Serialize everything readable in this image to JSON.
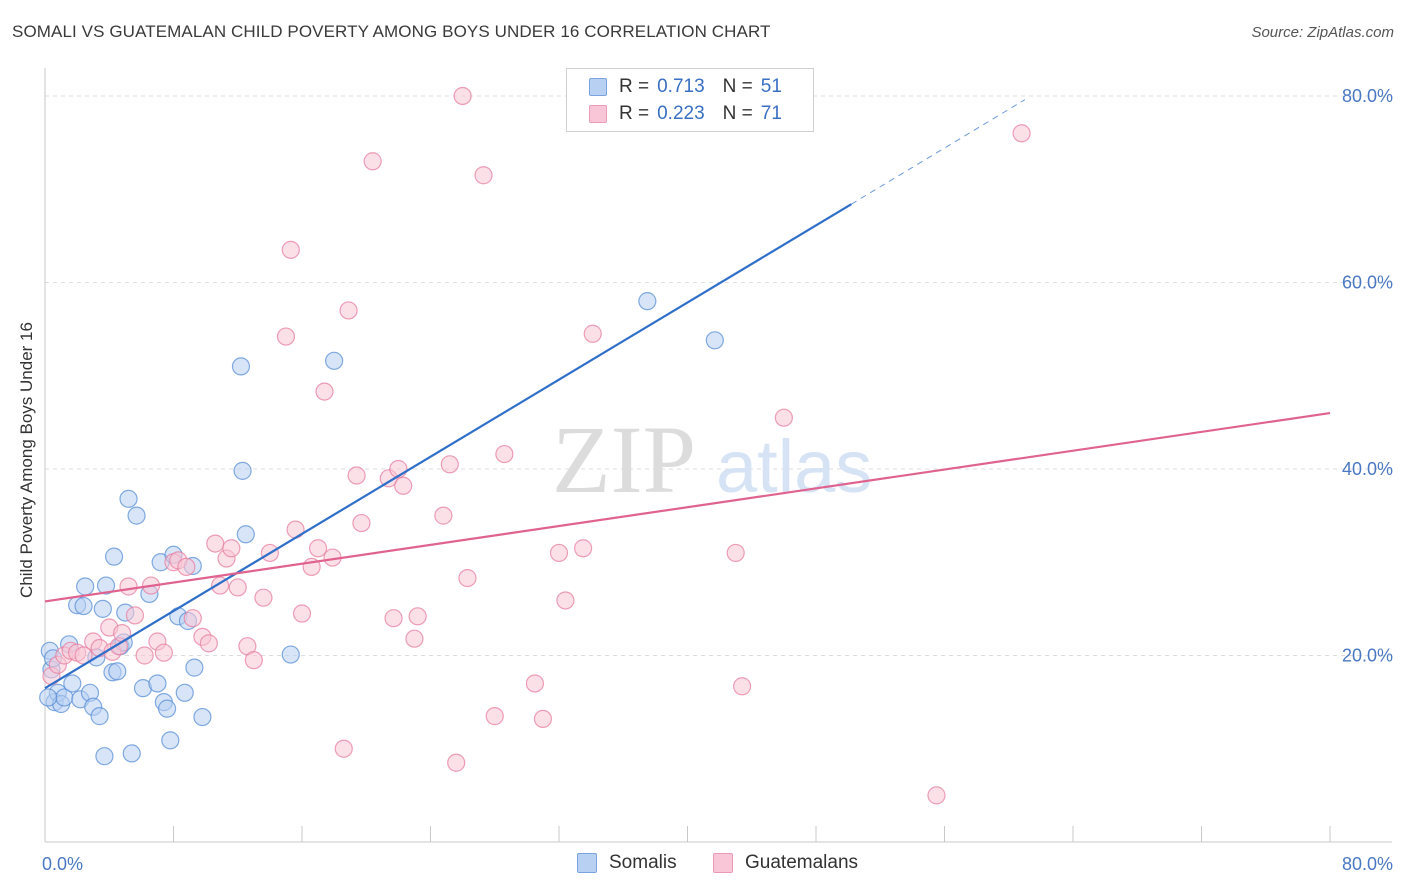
{
  "title": "SOMALI VS GUATEMALAN CHILD POVERTY AMONG BOYS UNDER 16 CORRELATION CHART",
  "source": "Source: ZipAtlas.com",
  "watermark": {
    "zip": "ZIP",
    "atlas": "atlas"
  },
  "legend_top": {
    "rows": [
      {
        "r_label": "R =",
        "r_value": "0.713",
        "n_label": "N =",
        "n_value": "51",
        "fill": "#b8d0f2",
        "stroke": "#7aa3df"
      },
      {
        "r_label": "R =",
        "r_value": "0.223",
        "n_label": "N =",
        "n_value": "71",
        "fill": "#f8c6d6",
        "stroke": "#eb9ab5"
      }
    ]
  },
  "legend_bottom": [
    {
      "label": "Somalis",
      "fill": "#b8d0f2",
      "stroke": "#7aa3df"
    },
    {
      "label": "Guatemalans",
      "fill": "#f8c6d6",
      "stroke": "#eb9ab5"
    }
  ],
  "chart_data": {
    "type": "scatter",
    "title": "SOMALI VS GUATEMALAN CHILD POVERTY AMONG BOYS UNDER 16 CORRELATION CHART",
    "xlabel": "",
    "ylabel": "Child Poverty Among Boys Under 16",
    "xlim": [
      0,
      80
    ],
    "ylim": [
      0,
      83
    ],
    "x_tick_labels": [
      {
        "value": 0,
        "label": "0.0%"
      },
      {
        "value": 80,
        "label": "80.0%"
      }
    ],
    "y_tick_labels": [
      {
        "value": 20,
        "label": "20.0%"
      },
      {
        "value": 40,
        "label": "40.0%"
      },
      {
        "value": 60,
        "label": "60.0%"
      },
      {
        "value": 80,
        "label": "80.0%"
      }
    ],
    "x_minor_ticks": [
      0,
      8,
      16,
      24,
      32,
      40,
      48,
      56,
      64,
      72,
      80
    ],
    "grid_y": [
      20,
      40,
      60,
      80
    ],
    "series": [
      {
        "name": "Somalis",
        "color": "#5a8fd6",
        "fill": "#b8d0f2",
        "r": 0.713,
        "n": 51,
        "trend": {
          "x0": 0,
          "y0": 16.5,
          "x1": 50.2,
          "y1": 68.4,
          "dash_x1": 61.0,
          "dash_y1": 79.6,
          "color": "#2f6fc9"
        },
        "points": [
          [
            0.3,
            20.5
          ],
          [
            0.4,
            18.5
          ],
          [
            0.5,
            19.7
          ],
          [
            0.6,
            15.0
          ],
          [
            0.8,
            16.0
          ],
          [
            1.0,
            14.8
          ],
          [
            1.2,
            15.5
          ],
          [
            1.5,
            21.2
          ],
          [
            1.7,
            17.0
          ],
          [
            2.0,
            25.4
          ],
          [
            2.2,
            15.3
          ],
          [
            2.4,
            25.3
          ],
          [
            2.5,
            27.4
          ],
          [
            2.8,
            16.0
          ],
          [
            3.0,
            14.5
          ],
          [
            3.2,
            19.8
          ],
          [
            3.4,
            13.5
          ],
          [
            3.6,
            25.0
          ],
          [
            3.7,
            9.2
          ],
          [
            3.8,
            27.5
          ],
          [
            4.2,
            18.2
          ],
          [
            4.3,
            30.6
          ],
          [
            4.5,
            18.3
          ],
          [
            4.7,
            21.0
          ],
          [
            4.9,
            21.4
          ],
          [
            5.0,
            24.6
          ],
          [
            5.2,
            36.8
          ],
          [
            5.4,
            9.5
          ],
          [
            5.7,
            35.0
          ],
          [
            6.1,
            16.5
          ],
          [
            6.5,
            26.6
          ],
          [
            7.0,
            17.0
          ],
          [
            7.2,
            30.0
          ],
          [
            7.4,
            15.0
          ],
          [
            7.6,
            14.3
          ],
          [
            7.8,
            10.9
          ],
          [
            8.0,
            30.8
          ],
          [
            8.3,
            24.2
          ],
          [
            8.7,
            16.0
          ],
          [
            8.9,
            23.7
          ],
          [
            9.2,
            29.6
          ],
          [
            9.3,
            18.7
          ],
          [
            9.8,
            13.4
          ],
          [
            12.2,
            51.0
          ],
          [
            12.3,
            39.8
          ],
          [
            12.5,
            33.0
          ],
          [
            15.3,
            20.1
          ],
          [
            18.0,
            51.6
          ],
          [
            37.5,
            58.0
          ],
          [
            41.7,
            53.8
          ],
          [
            0.2,
            15.5
          ]
        ]
      },
      {
        "name": "Guatemalans",
        "color": "#e77fa1",
        "fill": "#f8c6d6",
        "r": 0.223,
        "n": 71,
        "trend": {
          "x0": 0,
          "y0": 25.8,
          "x1": 80,
          "y1": 46.0,
          "color": "#e0628f"
        },
        "points": [
          [
            0.4,
            17.8
          ],
          [
            0.8,
            19.0
          ],
          [
            1.2,
            20.0
          ],
          [
            1.6,
            20.5
          ],
          [
            2.0,
            20.3
          ],
          [
            2.4,
            20.0
          ],
          [
            3.0,
            21.5
          ],
          [
            3.4,
            20.8
          ],
          [
            4.0,
            23.0
          ],
          [
            4.2,
            20.4
          ],
          [
            4.6,
            21.0
          ],
          [
            4.8,
            22.4
          ],
          [
            5.2,
            27.4
          ],
          [
            5.6,
            24.3
          ],
          [
            6.2,
            20.0
          ],
          [
            6.6,
            27.5
          ],
          [
            7.0,
            21.5
          ],
          [
            7.4,
            20.3
          ],
          [
            8.0,
            30.0
          ],
          [
            8.3,
            30.2
          ],
          [
            8.8,
            29.5
          ],
          [
            9.2,
            24.0
          ],
          [
            9.8,
            22.0
          ],
          [
            10.2,
            21.3
          ],
          [
            10.6,
            32.0
          ],
          [
            10.9,
            27.5
          ],
          [
            11.3,
            30.4
          ],
          [
            11.6,
            31.5
          ],
          [
            12.0,
            27.3
          ],
          [
            12.6,
            21.0
          ],
          [
            13.0,
            19.5
          ],
          [
            13.6,
            26.2
          ],
          [
            14.0,
            31.0
          ],
          [
            15.3,
            63.5
          ],
          [
            15.0,
            54.2
          ],
          [
            15.6,
            33.5
          ],
          [
            16.0,
            24.5
          ],
          [
            16.6,
            29.5
          ],
          [
            17.0,
            31.5
          ],
          [
            17.4,
            48.3
          ],
          [
            17.9,
            30.5
          ],
          [
            18.6,
            10.0
          ],
          [
            18.9,
            57.0
          ],
          [
            19.4,
            39.3
          ],
          [
            19.7,
            34.2
          ],
          [
            20.4,
            73.0
          ],
          [
            21.4,
            39.0
          ],
          [
            21.7,
            24.0
          ],
          [
            22.0,
            40.0
          ],
          [
            22.3,
            38.2
          ],
          [
            23.0,
            21.8
          ],
          [
            23.2,
            24.2
          ],
          [
            24.8,
            35.0
          ],
          [
            25.2,
            40.5
          ],
          [
            25.6,
            8.5
          ],
          [
            26.0,
            80.0
          ],
          [
            26.3,
            28.3
          ],
          [
            27.3,
            71.5
          ],
          [
            28.0,
            13.5
          ],
          [
            28.6,
            41.6
          ],
          [
            30.5,
            17.0
          ],
          [
            31.0,
            13.2
          ],
          [
            32.0,
            31.0
          ],
          [
            32.4,
            25.9
          ],
          [
            33.5,
            31.5
          ],
          [
            34.1,
            54.5
          ],
          [
            43.0,
            31.0
          ],
          [
            43.4,
            16.7
          ],
          [
            46.0,
            45.5
          ],
          [
            55.5,
            5.0
          ],
          [
            60.8,
            76.0
          ]
        ]
      }
    ]
  }
}
